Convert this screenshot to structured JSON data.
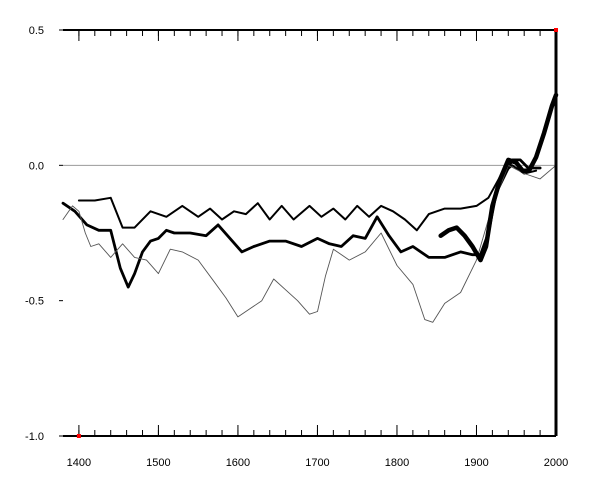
{
  "chart_data": {
    "type": "line",
    "title": "",
    "xlabel": "",
    "ylabel": "",
    "xlim": [
      1380,
      2000
    ],
    "ylim": [
      -1.0,
      0.5
    ],
    "x_ticks": [
      1400,
      1500,
      1600,
      1700,
      1800,
      1900,
      2000
    ],
    "x_tick_labels": [
      "1400",
      "1500",
      "1600",
      "1700",
      "1800",
      "1900",
      "2000"
    ],
    "y_ticks": [
      0.5,
      0.0,
      -0.5,
      -1.0
    ],
    "y_tick_labels": [
      "0.5",
      "0.0",
      "-0.5",
      "-1.0"
    ],
    "reference_line_y": 0.0,
    "grid": false,
    "legend": "none",
    "colors": {
      "line": "#000000",
      "zero_line": "#999999",
      "marker": "#ff0000"
    },
    "series": [
      {
        "style": "medium-upper",
        "x": [
          1400,
          1420,
          1440,
          1455,
          1470,
          1490,
          1510,
          1530,
          1550,
          1565,
          1580,
          1595,
          1610,
          1625,
          1640,
          1655,
          1670,
          1690,
          1705,
          1720,
          1735,
          1750,
          1765,
          1780,
          1795,
          1810,
          1825,
          1840,
          1860,
          1880,
          1900,
          1915,
          1930,
          1945,
          1960,
          1975
        ],
        "y": [
          -0.13,
          -0.13,
          -0.12,
          -0.23,
          -0.23,
          -0.17,
          -0.19,
          -0.15,
          -0.19,
          -0.16,
          -0.2,
          -0.17,
          -0.18,
          -0.14,
          -0.2,
          -0.15,
          -0.2,
          -0.15,
          -0.19,
          -0.16,
          -0.2,
          -0.15,
          -0.19,
          -0.15,
          -0.17,
          -0.2,
          -0.24,
          -0.18,
          -0.16,
          -0.16,
          -0.15,
          -0.12,
          -0.04,
          0.0,
          -0.03,
          -0.02
        ]
      },
      {
        "style": "heavy",
        "x": [
          1380,
          1395,
          1410,
          1425,
          1440,
          1452,
          1462,
          1470,
          1480,
          1490,
          1500,
          1510,
          1520,
          1540,
          1560,
          1575,
          1590,
          1605,
          1620,
          1640,
          1660,
          1680,
          1700,
          1715,
          1730,
          1745,
          1760,
          1775,
          1790,
          1805,
          1820,
          1840,
          1860,
          1880,
          1895,
          1905,
          1915,
          1925,
          1935,
          1945,
          1955,
          1965,
          1980
        ],
        "y": [
          -0.14,
          -0.17,
          -0.22,
          -0.24,
          -0.24,
          -0.38,
          -0.45,
          -0.4,
          -0.32,
          -0.28,
          -0.27,
          -0.24,
          -0.25,
          -0.25,
          -0.26,
          -0.22,
          -0.27,
          -0.32,
          -0.3,
          -0.28,
          -0.28,
          -0.3,
          -0.27,
          -0.29,
          -0.3,
          -0.26,
          -0.27,
          -0.19,
          -0.26,
          -0.32,
          -0.3,
          -0.34,
          -0.34,
          -0.32,
          -0.33,
          -0.33,
          -0.25,
          -0.1,
          -0.04,
          0.02,
          0.02,
          -0.01,
          -0.01
        ]
      },
      {
        "style": "thin",
        "x": [
          1380,
          1392,
          1400,
          1408,
          1415,
          1425,
          1440,
          1455,
          1470,
          1485,
          1500,
          1515,
          1530,
          1550,
          1570,
          1585,
          1600,
          1615,
          1630,
          1645,
          1660,
          1675,
          1690,
          1700,
          1710,
          1720,
          1740,
          1760,
          1780,
          1800,
          1820,
          1835,
          1845,
          1860,
          1880,
          1900,
          1920,
          1940,
          1960,
          1980,
          2000
        ],
        "y": [
          -0.2,
          -0.15,
          -0.17,
          -0.25,
          -0.3,
          -0.29,
          -0.34,
          -0.29,
          -0.34,
          -0.35,
          -0.4,
          -0.31,
          -0.32,
          -0.35,
          -0.43,
          -0.49,
          -0.56,
          -0.53,
          -0.5,
          -0.42,
          -0.46,
          -0.5,
          -0.55,
          -0.54,
          -0.41,
          -0.31,
          -0.35,
          -0.32,
          -0.25,
          -0.37,
          -0.44,
          -0.57,
          -0.58,
          -0.51,
          -0.47,
          -0.35,
          -0.15,
          0.0,
          -0.03,
          -0.05,
          0.0
        ]
      },
      {
        "style": "extra-heavy",
        "x": [
          1855,
          1865,
          1875,
          1885,
          1895,
          1905,
          1912,
          1920,
          1930,
          1940,
          1950,
          1958,
          1966,
          1975,
          1985,
          1995,
          2000
        ],
        "y": [
          -0.26,
          -0.24,
          -0.23,
          -0.26,
          -0.3,
          -0.35,
          -0.3,
          -0.15,
          -0.05,
          0.02,
          0.01,
          -0.02,
          -0.02,
          0.03,
          0.12,
          0.22,
          0.26
        ]
      }
    ]
  }
}
